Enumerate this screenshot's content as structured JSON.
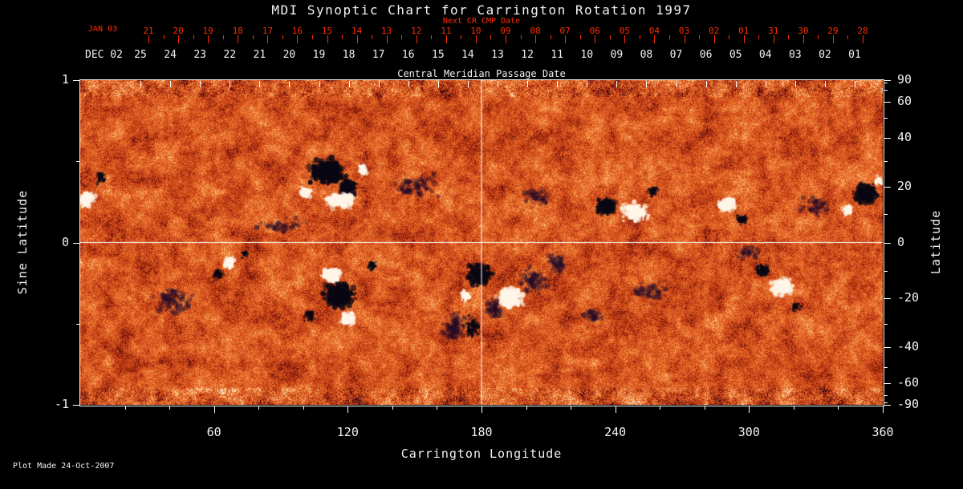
{
  "title": "MDI Synoptic Chart for Carrington Rotation 1997",
  "footer": {
    "plot_made": "Plot Made 24-Oct-2007"
  },
  "colors": {
    "background": "#000000",
    "red_axis": "#ff2e00",
    "axis_white": "#f2f2f2",
    "crosshair": "#ffffff"
  },
  "axes": {
    "top_red": {
      "label": "Next CR CMP Date",
      "month": "JAN 03",
      "days": [
        "21",
        "20",
        "19",
        "18",
        "17",
        "16",
        "15",
        "14",
        "13",
        "12",
        "11",
        "10",
        "09",
        "08",
        "07",
        "06",
        "05",
        "04",
        "03",
        "02",
        "01",
        "31",
        "30",
        "29",
        "28"
      ]
    },
    "top_white": {
      "label": "Central Meridian Passage Date",
      "month": "DEC 02",
      "days": [
        "25",
        "24",
        "23",
        "22",
        "21",
        "20",
        "19",
        "18",
        "17",
        "16",
        "15",
        "14",
        "13",
        "12",
        "11",
        "10",
        "09",
        "08",
        "07",
        "06",
        "05",
        "04",
        "03",
        "02",
        "01"
      ]
    },
    "left": {
      "label": "Sine Latitude",
      "ticks": [
        "1",
        "0",
        "-1"
      ],
      "tick_values": [
        1,
        0,
        -1
      ],
      "minor_ticks": [
        0.5,
        -0.5
      ]
    },
    "right": {
      "label": "Latitude",
      "ticks": [
        90,
        60,
        40,
        20,
        0,
        -20,
        -40,
        -60,
        -90
      ],
      "minor_ticks": [
        80,
        70,
        50,
        30,
        10,
        -10,
        -30,
        -50,
        -70,
        -80
      ]
    },
    "bottom": {
      "label": "Carrington Longitude",
      "ticks": [
        60,
        120,
        180,
        240,
        300,
        360
      ],
      "minor_ticks": [
        20,
        40,
        80,
        100,
        140,
        160,
        200,
        220,
        260,
        280,
        320,
        340
      ]
    }
  },
  "chart_data": {
    "type": "heatmap",
    "title": "MDI Synoptic Chart for Carrington Rotation 1997",
    "xlabel": "Carrington Longitude",
    "ylabel": "Sine Latitude",
    "ylabel_right": "Latitude",
    "xlim": [
      0,
      360
    ],
    "ylim": [
      -1,
      1
    ],
    "x_ticks": [
      60,
      120,
      180,
      240,
      300,
      360
    ],
    "left_ticks": [
      1,
      0,
      -1
    ],
    "right_ticks_deg": [
      90,
      60,
      40,
      20,
      0,
      -20,
      -40,
      -60,
      -90
    ],
    "crosshair": {
      "longitude": 180,
      "sine_latitude": 0
    },
    "palette": [
      {
        "v": 0.0,
        "rgb": [
          20,
          4,
          30
        ]
      },
      {
        "v": 0.13,
        "rgb": [
          92,
          12,
          10
        ]
      },
      {
        "v": 0.3,
        "rgb": [
          172,
          45,
          16
        ]
      },
      {
        "v": 0.5,
        "rgb": [
          220,
          86,
          30
        ]
      },
      {
        "v": 0.68,
        "rgb": [
          238,
          122,
          50
        ]
      },
      {
        "v": 0.82,
        "rgb": [
          247,
          168,
          95
        ]
      },
      {
        "v": 0.92,
        "rgb": [
          255,
          215,
          160
        ]
      },
      {
        "v": 1.0,
        "rgb": [
          255,
          250,
          238
        ]
      }
    ],
    "noise": {
      "weights": [
        0.42,
        0.33,
        0.25
      ],
      "coarse_grid": [
        60,
        24
      ],
      "medium_grid": [
        170,
        68
      ],
      "edge_contrast": 1.4
    },
    "active_regions": [
      {
        "lon": 111,
        "slat": 0.44,
        "rlon": 10,
        "rslat": 0.1,
        "pol": "neg",
        "n": 280,
        "sz": 3
      },
      {
        "lon": 120,
        "slat": 0.34,
        "rlon": 5,
        "rslat": 0.06,
        "pol": "neg",
        "n": 120,
        "sz": 2.5
      },
      {
        "lon": 117,
        "slat": 0.26,
        "rlon": 8,
        "rslat": 0.055,
        "pol": "pos",
        "n": 220,
        "sz": 2.6
      },
      {
        "lon": 101,
        "slat": 0.31,
        "rlon": 3,
        "rslat": 0.04,
        "pol": "pos",
        "n": 70,
        "sz": 2.2
      },
      {
        "lon": 127,
        "slat": 0.45,
        "rlon": 2.5,
        "rslat": 0.05,
        "pol": "pos",
        "n": 60,
        "sz": 2
      },
      {
        "lon": 3,
        "slat": 0.27,
        "rlon": 4,
        "rslat": 0.06,
        "pol": "pos",
        "n": 100,
        "sz": 2.4
      },
      {
        "lon": 9,
        "slat": 0.4,
        "rlon": 3,
        "rslat": 0.05,
        "pol": "neg",
        "n": 50,
        "sz": 1.8
      },
      {
        "lon": 67,
        "slat": -0.12,
        "rlon": 3.5,
        "rslat": 0.05,
        "pol": "pos",
        "n": 80,
        "sz": 2.2
      },
      {
        "lon": 62,
        "slat": -0.19,
        "rlon": 3,
        "rslat": 0.04,
        "pol": "neg",
        "n": 55,
        "sz": 1.8
      },
      {
        "lon": 74,
        "slat": -0.07,
        "rlon": 2,
        "rslat": 0.03,
        "pol": "neg",
        "n": 35,
        "sz": 1.5
      },
      {
        "lon": 113,
        "slat": -0.2,
        "rlon": 6,
        "rslat": 0.05,
        "pol": "pos",
        "n": 150,
        "sz": 2.6
      },
      {
        "lon": 116,
        "slat": -0.33,
        "rlon": 9,
        "rslat": 0.09,
        "pol": "neg",
        "n": 240,
        "sz": 2.8
      },
      {
        "lon": 120,
        "slat": -0.47,
        "rlon": 4,
        "rslat": 0.05,
        "pol": "pos",
        "n": 100,
        "sz": 2.4
      },
      {
        "lon": 103,
        "slat": -0.45,
        "rlon": 3,
        "rslat": 0.05,
        "pol": "neg",
        "n": 60,
        "sz": 1.8
      },
      {
        "lon": 131,
        "slat": -0.14,
        "rlon": 2.5,
        "rslat": 0.04,
        "pol": "neg",
        "n": 40,
        "sz": 1.6
      },
      {
        "lon": 179,
        "slat": -0.2,
        "rlon": 7,
        "rslat": 0.08,
        "pol": "neg",
        "n": 200,
        "sz": 2.6
      },
      {
        "lon": 193,
        "slat": -0.34,
        "rlon": 7,
        "rslat": 0.08,
        "pol": "pos",
        "n": 220,
        "sz": 2.8
      },
      {
        "lon": 173,
        "slat": -0.33,
        "rlon": 3,
        "rslat": 0.05,
        "pol": "pos",
        "n": 60,
        "sz": 2
      },
      {
        "lon": 176,
        "slat": -0.52,
        "rlon": 4,
        "rslat": 0.09,
        "pol": "neg",
        "n": 80,
        "sz": 1.8
      },
      {
        "lon": 236,
        "slat": 0.22,
        "rlon": 6,
        "rslat": 0.07,
        "pol": "neg",
        "n": 160,
        "sz": 2.4
      },
      {
        "lon": 249,
        "slat": 0.19,
        "rlon": 7,
        "rslat": 0.065,
        "pol": "pos",
        "n": 190,
        "sz": 2.6
      },
      {
        "lon": 257,
        "slat": 0.32,
        "rlon": 4,
        "rslat": 0.04,
        "pol": "neg",
        "n": 50,
        "sz": 1.6
      },
      {
        "lon": 290,
        "slat": 0.23,
        "rlon": 5,
        "rslat": 0.055,
        "pol": "pos",
        "n": 130,
        "sz": 2.4
      },
      {
        "lon": 297,
        "slat": 0.14,
        "rlon": 3,
        "rslat": 0.04,
        "pol": "neg",
        "n": 60,
        "sz": 1.8
      },
      {
        "lon": 315,
        "slat": -0.27,
        "rlon": 6,
        "rslat": 0.07,
        "pol": "pos",
        "n": 160,
        "sz": 2.5
      },
      {
        "lon": 306,
        "slat": -0.17,
        "rlon": 4,
        "rslat": 0.05,
        "pol": "neg",
        "n": 90,
        "sz": 2
      },
      {
        "lon": 321,
        "slat": -0.4,
        "rlon": 3,
        "rslat": 0.04,
        "pol": "neg",
        "n": 50,
        "sz": 1.6
      },
      {
        "lon": 352,
        "slat": 0.3,
        "rlon": 6,
        "rslat": 0.08,
        "pol": "neg",
        "n": 180,
        "sz": 2.6
      },
      {
        "lon": 344,
        "slat": 0.2,
        "rlon": 3,
        "rslat": 0.04,
        "pol": "pos",
        "n": 60,
        "sz": 2
      },
      {
        "lon": 358,
        "slat": 0.38,
        "rlon": 2,
        "rslat": 0.04,
        "pol": "pos",
        "n": 40,
        "sz": 1.8
      }
    ],
    "dark_mottle": [
      {
        "lon": 168,
        "slat": -0.52,
        "rlon": 6,
        "rslat": 0.12,
        "n": 120
      },
      {
        "lon": 186,
        "slat": -0.4,
        "rlon": 5,
        "rslat": 0.08,
        "n": 80
      },
      {
        "lon": 203,
        "slat": -0.24,
        "rlon": 8,
        "rslat": 0.1,
        "n": 100
      },
      {
        "lon": 214,
        "slat": -0.12,
        "rlon": 6,
        "rslat": 0.08,
        "n": 70
      },
      {
        "lon": 42,
        "slat": -0.36,
        "rlon": 12,
        "rslat": 0.1,
        "n": 110
      },
      {
        "lon": 150,
        "slat": 0.35,
        "rlon": 12,
        "rslat": 0.1,
        "n": 90
      },
      {
        "lon": 205,
        "slat": 0.28,
        "rlon": 10,
        "rslat": 0.08,
        "n": 60
      },
      {
        "lon": 330,
        "slat": 0.22,
        "rlon": 8,
        "rslat": 0.08,
        "n": 60
      },
      {
        "lon": 300,
        "slat": -0.06,
        "rlon": 10,
        "rslat": 0.06,
        "n": 50
      },
      {
        "lon": 255,
        "slat": -0.3,
        "rlon": 10,
        "rslat": 0.08,
        "n": 70
      },
      {
        "lon": 90,
        "slat": 0.1,
        "rlon": 14,
        "rslat": 0.06,
        "n": 60
      },
      {
        "lon": 230,
        "slat": -0.45,
        "rlon": 8,
        "rslat": 0.06,
        "n": 50
      }
    ]
  }
}
